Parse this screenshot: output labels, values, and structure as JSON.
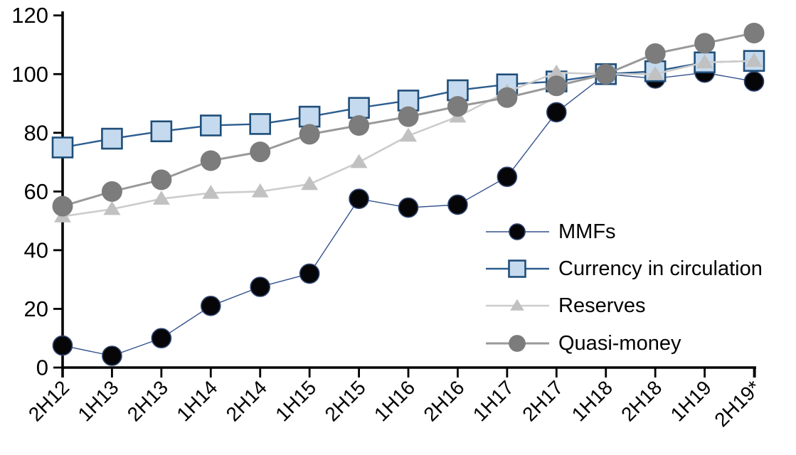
{
  "chart_data": {
    "type": "line",
    "title": "",
    "xlabel": "",
    "ylabel": "",
    "grid": false,
    "legend_position": "center-right",
    "ylim": [
      0,
      120
    ],
    "yticks": [
      0,
      20,
      40,
      60,
      80,
      100,
      120
    ],
    "categories": [
      "2H12",
      "1H13",
      "2H13",
      "1H14",
      "2H14",
      "1H15",
      "2H15",
      "1H16",
      "2H16",
      "1H17",
      "2H17",
      "1H18",
      "2H18",
      "1H19",
      "2H19*"
    ],
    "series": [
      {
        "name": "MMFs",
        "marker": "circle",
        "marker_size": 27,
        "marker_fill": "#060608",
        "marker_stroke": "#2f4470",
        "marker_stroke_width": 1.6,
        "line_color": "#33518c",
        "line_width": 1.4,
        "values": [
          7.5,
          4,
          10,
          21,
          27.5,
          32,
          57.5,
          54.5,
          55.5,
          65,
          87,
          100,
          98.5,
          100.5,
          97.5
        ]
      },
      {
        "name": "Currency in circulation",
        "marker": "square",
        "marker_size": 28,
        "marker_fill": "#c5daee",
        "marker_stroke": "#1f4e79",
        "marker_stroke_width": 2.6,
        "line_color": "#2c5d8f",
        "line_width": 2.4,
        "values": [
          75,
          78,
          80.5,
          82.5,
          83,
          85.5,
          88.5,
          91,
          94.5,
          96.5,
          97.5,
          100,
          101,
          104,
          104.5
        ]
      },
      {
        "name": "Reserves",
        "marker": "triangle",
        "marker_size": 24,
        "marker_fill": "#c1c1c1",
        "marker_stroke": "#c1c1c1",
        "marker_stroke_width": 0,
        "line_color": "#cccccc",
        "line_width": 2.6,
        "values": [
          51.5,
          54,
          57.5,
          59.5,
          60,
          62.5,
          70,
          79,
          85.5,
          94,
          100.5,
          100,
          100,
          104,
          104.5
        ]
      },
      {
        "name": "Quasi-money",
        "marker": "circle",
        "marker_size": 29,
        "marker_fill": "#7c7c7c",
        "marker_stroke": "#7c7c7c",
        "marker_stroke_width": 0,
        "line_color": "#999999",
        "line_width": 3,
        "values": [
          55,
          60,
          64,
          70.5,
          73.5,
          79.5,
          82.5,
          85.5,
          89,
          92,
          96,
          100,
          107,
          110.5,
          114
        ]
      }
    ],
    "axis_color": "#000000",
    "background_color": "#ffffff"
  }
}
